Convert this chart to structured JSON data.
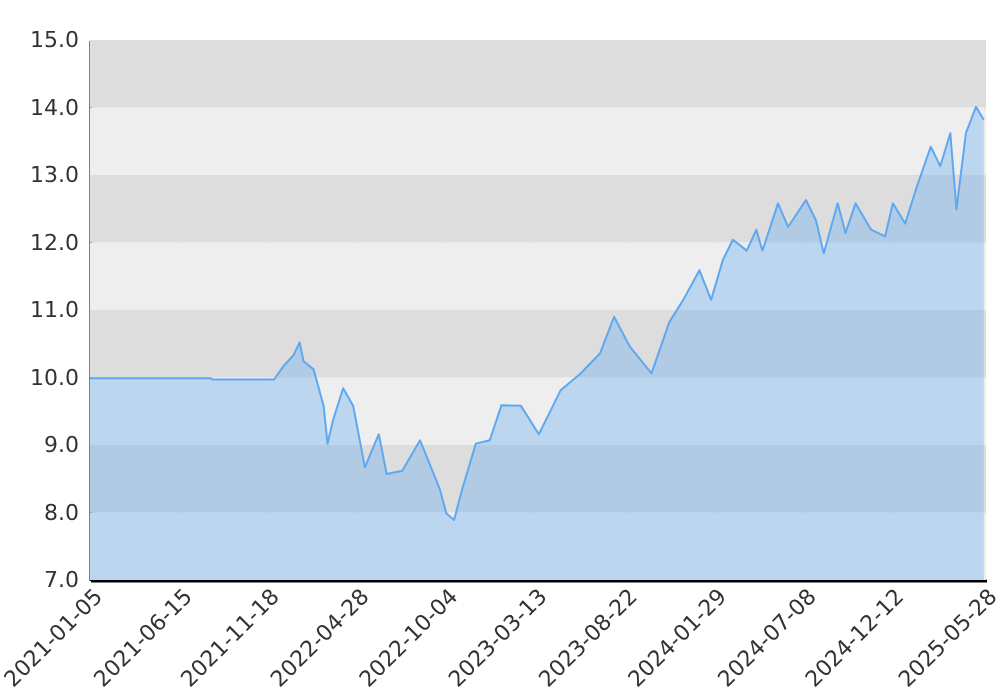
{
  "chart_data": {
    "type": "area",
    "x": [
      "2021-01-05",
      "2021-08-09",
      "2021-08-13",
      "2021-12-01",
      "2021-12-19",
      "2022-01-05",
      "2022-01-16",
      "2022-01-23",
      "2022-02-10",
      "2022-02-28",
      "2022-03-07",
      "2022-03-17",
      "2022-04-04",
      "2022-04-22",
      "2022-05-13",
      "2022-06-07",
      "2022-06-21",
      "2022-07-19",
      "2022-08-20",
      "2022-09-11",
      "2022-09-25",
      "2022-10-06",
      "2022-10-20",
      "2022-11-03",
      "2022-11-28",
      "2022-12-23",
      "2023-01-13",
      "2023-02-17",
      "2023-03-21",
      "2023-04-29",
      "2023-06-04",
      "2023-07-09",
      "2023-08-03",
      "2023-08-31",
      "2023-10-09",
      "2023-11-10",
      "2023-12-05",
      "2024-01-03",
      "2024-01-24",
      "2024-02-14",
      "2024-03-03",
      "2024-03-28",
      "2024-04-14",
      "2024-04-25",
      "2024-05-23",
      "2024-06-10",
      "2024-07-12",
      "2024-07-30",
      "2024-08-13",
      "2024-09-07",
      "2024-09-21",
      "2024-10-09",
      "2024-11-06",
      "2024-12-01",
      "2024-12-15",
      "2025-01-06",
      "2025-01-27",
      "2025-02-21",
      "2025-03-10",
      "2025-03-28",
      "2025-04-08",
      "2025-04-25",
      "2025-05-13",
      "2025-05-27"
    ],
    "series": [
      {
        "color": "#5fa8f0",
        "values": [
          9.99,
          9.99,
          9.97,
          9.97,
          10.18,
          10.33,
          10.52,
          10.24,
          10.12,
          9.58,
          9.02,
          9.37,
          9.84,
          9.58,
          8.67,
          9.16,
          8.57,
          8.62,
          9.07,
          8.62,
          8.33,
          7.99,
          7.89,
          8.33,
          9.02,
          9.07,
          9.59,
          9.58,
          9.16,
          9.81,
          10.06,
          10.36,
          10.9,
          10.46,
          10.06,
          10.82,
          11.15,
          11.59,
          11.15,
          11.74,
          12.04,
          11.88,
          12.19,
          11.88,
          12.58,
          12.23,
          12.63,
          12.33,
          11.84,
          12.58,
          12.14,
          12.58,
          12.19,
          12.09,
          12.58,
          12.28,
          12.83,
          13.42,
          13.13,
          13.62,
          12.49,
          13.62,
          14.01,
          13.82
        ]
      }
    ],
    "xlim": [
      "2021-01-05",
      "2025-05-31"
    ],
    "xticks": [
      "2021-01-05",
      "2021-06-15",
      "2021-11-18",
      "2022-04-28",
      "2022-10-04",
      "2023-03-13",
      "2023-08-22",
      "2024-01-29",
      "2024-07-08",
      "2024-12-12",
      "2025-05-28"
    ],
    "ylim": [
      7,
      15
    ],
    "yticks": [
      {
        "value": 7,
        "label": "7.0"
      },
      {
        "value": 8,
        "label": "8.0"
      },
      {
        "value": 9,
        "label": "9.0"
      },
      {
        "value": 10,
        "label": "10.0"
      },
      {
        "value": 11,
        "label": "11.0"
      },
      {
        "value": 12,
        "label": "12.0"
      },
      {
        "value": 13,
        "label": "13.0"
      },
      {
        "value": 14,
        "label": "14.0"
      },
      {
        "value": 15,
        "label": "15.0"
      }
    ],
    "grid": "x"
  }
}
